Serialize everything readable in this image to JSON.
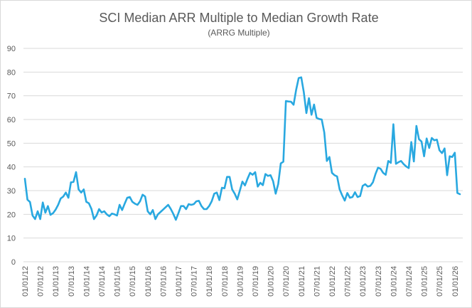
{
  "chart_data": {
    "type": "line",
    "title": "SCI Median ARR Multiple to Median Growth Rate",
    "subtitle": "(ARRG Multiple)",
    "xlabel": "",
    "ylabel": "",
    "ylim": [
      0,
      90
    ],
    "yticks": [
      "0",
      "10",
      "20",
      "30",
      "40",
      "50",
      "60",
      "70",
      "80",
      "90"
    ],
    "xticks": [
      "01/01/12",
      "07/01/12",
      "01/01/13",
      "07/01/13",
      "01/01/14",
      "07/01/14",
      "01/01/15",
      "07/01/15",
      "01/01/16",
      "07/01/16",
      "01/01/17",
      "07/01/17",
      "01/01/18",
      "07/01/18",
      "01/01/19",
      "07/01/19",
      "01/01/20",
      "07/01/20",
      "01/01/21",
      "07/01/21",
      "01/01/22",
      "07/01/22",
      "01/01/23",
      "07/01/23",
      "01/01/24",
      "07/01/24",
      "01/01/25",
      "07/01/25",
      "01/01/26"
    ],
    "grid": "horizontal",
    "legend": "none",
    "line_color": "#29A8E0",
    "series": [
      {
        "points": [
          [
            "2012-01",
            35
          ],
          [
            "2012-02",
            26.2
          ],
          [
            "2012-03",
            25.2
          ],
          [
            "2012-04",
            19.5
          ],
          [
            "2012-05",
            18
          ],
          [
            "2012-06",
            21.3
          ],
          [
            "2012-07",
            18
          ],
          [
            "2012-08",
            25
          ],
          [
            "2012-09",
            20.7
          ],
          [
            "2012-10",
            23.5
          ],
          [
            "2012-11",
            19.8
          ],
          [
            "2012-12",
            20.5
          ],
          [
            "2013-01",
            22
          ],
          [
            "2013-02",
            24
          ],
          [
            "2013-03",
            26.7
          ],
          [
            "2013-04",
            27.5
          ],
          [
            "2013-05",
            29.2
          ],
          [
            "2013-06",
            27
          ],
          [
            "2013-07",
            33.5
          ],
          [
            "2013-08",
            33.7
          ],
          [
            "2013-09",
            37.8
          ],
          [
            "2013-10",
            30.5
          ],
          [
            "2013-11",
            29.2
          ],
          [
            "2013-12",
            30.5
          ],
          [
            "2014-01",
            25.3
          ],
          [
            "2014-02",
            24.7
          ],
          [
            "2014-03",
            22.3
          ],
          [
            "2014-04",
            18
          ],
          [
            "2014-05",
            19.5
          ],
          [
            "2014-06",
            22.2
          ],
          [
            "2014-07",
            20.8
          ],
          [
            "2014-08",
            21.3
          ],
          [
            "2014-09",
            20
          ],
          [
            "2014-10",
            19.2
          ],
          [
            "2014-11",
            20.3
          ],
          [
            "2014-12",
            20
          ],
          [
            "2015-01",
            19.5
          ],
          [
            "2015-02",
            24
          ],
          [
            "2015-03",
            21.8
          ],
          [
            "2015-04",
            24.5
          ],
          [
            "2015-05",
            27
          ],
          [
            "2015-06",
            27.3
          ],
          [
            "2015-07",
            25.3
          ],
          [
            "2015-08",
            24.5
          ],
          [
            "2015-09",
            24
          ],
          [
            "2015-10",
            25.5
          ],
          [
            "2015-11",
            28.3
          ],
          [
            "2015-12",
            27.5
          ],
          [
            "2016-01",
            21.3
          ],
          [
            "2016-02",
            20
          ],
          [
            "2016-03",
            21.8
          ],
          [
            "2016-04",
            18
          ],
          [
            "2016-05",
            20
          ],
          [
            "2016-06",
            21
          ],
          [
            "2016-07",
            22
          ],
          [
            "2016-08",
            23
          ],
          [
            "2016-09",
            24
          ],
          [
            "2016-10",
            22.3
          ],
          [
            "2016-11",
            20.2
          ],
          [
            "2016-12",
            17.7
          ],
          [
            "2017-01",
            20.5
          ],
          [
            "2017-02",
            23.5
          ],
          [
            "2017-03",
            23.5
          ],
          [
            "2017-04",
            22.2
          ],
          [
            "2017-05",
            24.3
          ],
          [
            "2017-06",
            24
          ],
          [
            "2017-07",
            24.3
          ],
          [
            "2017-08",
            25.5
          ],
          [
            "2017-09",
            25.7
          ],
          [
            "2017-10",
            23.5
          ],
          [
            "2017-11",
            22.2
          ],
          [
            "2017-12",
            22.2
          ],
          [
            "2018-01",
            23.5
          ],
          [
            "2018-02",
            25.5
          ],
          [
            "2018-03",
            28.7
          ],
          [
            "2018-04",
            29.2
          ],
          [
            "2018-05",
            26
          ],
          [
            "2018-06",
            31.2
          ],
          [
            "2018-07",
            31
          ],
          [
            "2018-08",
            35.8
          ],
          [
            "2018-09",
            35.8
          ],
          [
            "2018-10",
            30.5
          ],
          [
            "2018-11",
            28.7
          ],
          [
            "2018-12",
            26.3
          ],
          [
            "2019-01",
            30
          ],
          [
            "2019-02",
            33.8
          ],
          [
            "2019-03",
            32.2
          ],
          [
            "2019-04",
            35
          ],
          [
            "2019-05",
            37.5
          ],
          [
            "2019-06",
            36.7
          ],
          [
            "2019-07",
            37.8
          ],
          [
            "2019-08",
            31.7
          ],
          [
            "2019-09",
            33.3
          ],
          [
            "2019-10",
            32.3
          ],
          [
            "2019-11",
            37
          ],
          [
            "2019-12",
            36.2
          ],
          [
            "2020-01",
            36.5
          ],
          [
            "2020-02",
            34
          ],
          [
            "2020-03",
            28.7
          ],
          [
            "2020-04",
            32.8
          ],
          [
            "2020-05",
            41.5
          ],
          [
            "2020-06",
            42.2
          ],
          [
            "2020-07",
            67.8
          ],
          [
            "2020-08",
            67.6
          ],
          [
            "2020-09",
            67.5
          ],
          [
            "2020-10",
            66.2
          ],
          [
            "2020-11",
            72.5
          ],
          [
            "2020-12",
            77.5
          ],
          [
            "2021-01",
            77.8
          ],
          [
            "2021-02",
            71.5
          ],
          [
            "2021-03",
            62.7
          ],
          [
            "2021-04",
            69
          ],
          [
            "2021-05",
            62
          ],
          [
            "2021-06",
            66.3
          ],
          [
            "2021-07",
            60.7
          ],
          [
            "2021-08",
            60.2
          ],
          [
            "2021-09",
            60
          ],
          [
            "2021-10",
            54.5
          ],
          [
            "2021-11",
            42.5
          ],
          [
            "2021-12",
            44.2
          ],
          [
            "2022-01",
            37.5
          ],
          [
            "2022-02",
            36.5
          ],
          [
            "2022-03",
            36
          ],
          [
            "2022-04",
            30.5
          ],
          [
            "2022-05",
            28
          ],
          [
            "2022-06",
            25.8
          ],
          [
            "2022-07",
            29
          ],
          [
            "2022-08",
            27
          ],
          [
            "2022-09",
            27.3
          ],
          [
            "2022-10",
            29.3
          ],
          [
            "2022-11",
            27.3
          ],
          [
            "2022-12",
            27.7
          ],
          [
            "2023-01",
            32
          ],
          [
            "2023-02",
            32.7
          ],
          [
            "2023-03",
            31.7
          ],
          [
            "2023-04",
            32
          ],
          [
            "2023-05",
            33.5
          ],
          [
            "2023-06",
            37
          ],
          [
            "2023-07",
            39.7
          ],
          [
            "2023-08",
            39.2
          ],
          [
            "2023-09",
            37.5
          ],
          [
            "2023-10",
            36.7
          ],
          [
            "2023-11",
            42.5
          ],
          [
            "2023-12",
            41.7
          ],
          [
            "2024-01",
            58
          ],
          [
            "2024-02",
            41.3
          ],
          [
            "2024-03",
            42
          ],
          [
            "2024-04",
            42.5
          ],
          [
            "2024-05",
            41.2
          ],
          [
            "2024-06",
            40.2
          ],
          [
            "2024-07",
            39.5
          ],
          [
            "2024-08",
            50.5
          ],
          [
            "2024-09",
            42.3
          ],
          [
            "2024-10",
            57.3
          ],
          [
            "2024-11",
            51.7
          ],
          [
            "2024-12",
            50.7
          ],
          [
            "2025-01",
            44.5
          ],
          [
            "2025-02",
            52
          ],
          [
            "2025-03",
            48
          ],
          [
            "2025-04",
            52.2
          ],
          [
            "2025-05",
            51.2
          ],
          [
            "2025-06",
            51.5
          ],
          [
            "2025-07",
            47
          ],
          [
            "2025-08",
            45.8
          ],
          [
            "2025-09",
            47.8
          ],
          [
            "2025-10",
            36.5
          ],
          [
            "2025-11",
            44.5
          ],
          [
            "2025-12",
            44.2
          ],
          [
            "2026-01",
            46
          ],
          [
            "2026-02",
            29
          ],
          [
            "2026-03",
            28.5
          ]
        ]
      }
    ]
  }
}
